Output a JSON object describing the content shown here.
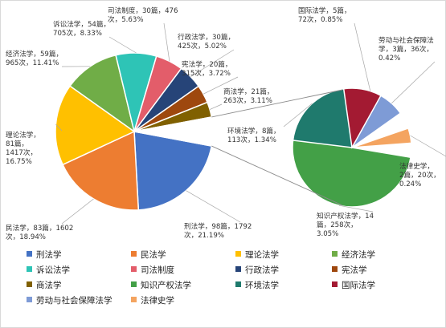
{
  "chart_data": {
    "type": "pie",
    "subtype": "bar-of-pie",
    "unit_articles": "篇",
    "unit_citations": "次",
    "slices": [
      {
        "name": "刑法学",
        "articles": 98,
        "citations": 1792,
        "percent": 21.19,
        "color": "#4472C4",
        "label_lines": [
          "刑法学，98篇，1792",
          "次，21.19%"
        ]
      },
      {
        "name": "民法学",
        "articles": 83,
        "citations": 1602,
        "percent": 18.94,
        "color": "#ED7D31",
        "label_lines": [
          "民法学，83篇，1602",
          "次，18.94%"
        ]
      },
      {
        "name": "理论法学",
        "articles": 81,
        "citations": 1417,
        "percent": 16.75,
        "color": "#FFC000",
        "label_lines": [
          "理论法学，",
          "81篇，",
          "1417次，",
          "16.75%"
        ]
      },
      {
        "name": "经济法学",
        "articles": 59,
        "citations": 965,
        "percent": 11.41,
        "color": "#70AD47",
        "label_lines": [
          "经济法学，59篇，",
          "965次，11.41%"
        ]
      },
      {
        "name": "诉讼法学",
        "articles": 54,
        "citations": 705,
        "percent": 8.33,
        "color": "#2EC4B6",
        "label_lines": [
          "诉讼法学，54篇，",
          "705次，8.33%"
        ]
      },
      {
        "name": "司法制度",
        "articles": 30,
        "citations": 476,
        "percent": 5.63,
        "color": "#E35D6A",
        "label_lines": [
          "司法制度，30篇，476",
          "次，5.63%"
        ]
      },
      {
        "name": "行政法学",
        "articles": 30,
        "citations": 425,
        "percent": 5.02,
        "color": "#264478",
        "label_lines": [
          "行政法学，30篇，",
          "425次，5.02%"
        ]
      },
      {
        "name": "宪法学",
        "articles": 20,
        "citations": 315,
        "percent": 3.72,
        "color": "#9E480E",
        "label_lines": [
          "宪法学，20篇，",
          "315次，3.72%"
        ]
      },
      {
        "name": "商法学",
        "articles": 21,
        "citations": 263,
        "percent": 3.11,
        "color": "#806000",
        "label_lines": [
          "商法学，21篇，",
          "263次，3.11%"
        ]
      },
      {
        "name": "知识产权法学",
        "articles": 14,
        "citations": 258,
        "percent": 3.05,
        "color": "#43A047",
        "label_lines": [
          "知识产权法学，14",
          "篇，258次，",
          "3.05%"
        ]
      },
      {
        "name": "环境法学",
        "articles": 8,
        "citations": 113,
        "percent": 1.34,
        "color": "#1F7A6D",
        "label_lines": [
          "环境法学，8篇，",
          "113次，1.34%"
        ]
      },
      {
        "name": "国际法学",
        "articles": 5,
        "citations": 72,
        "percent": 0.85,
        "color": "#A31A32",
        "label_lines": [
          "国际法学，5篇，",
          "72次，0.85%"
        ]
      },
      {
        "name": "劳动与社会保障法学",
        "articles": 3,
        "citations": 36,
        "percent": 0.42,
        "color": "#7E9BD6",
        "label_lines": [
          "劳动与社会保障法",
          "学，3篇，36次，",
          "0.42%"
        ]
      },
      {
        "name": "法律史学",
        "articles": 2,
        "citations": 20,
        "percent": 0.24,
        "color": "#F4A460",
        "label_lines": [
          "法律史学，",
          "2篇，20次，",
          "0.24%"
        ]
      }
    ],
    "legend_position": "bottom",
    "legend": [
      "刑法学",
      "民法学",
      "理论法学",
      "经济法学",
      "诉讼法学",
      "司法制度",
      "行政法学",
      "宪法学",
      "商法学",
      "知识产权法学",
      "环境法学",
      "国际法学",
      "劳动与社会保障法学",
      "法律史学"
    ]
  }
}
